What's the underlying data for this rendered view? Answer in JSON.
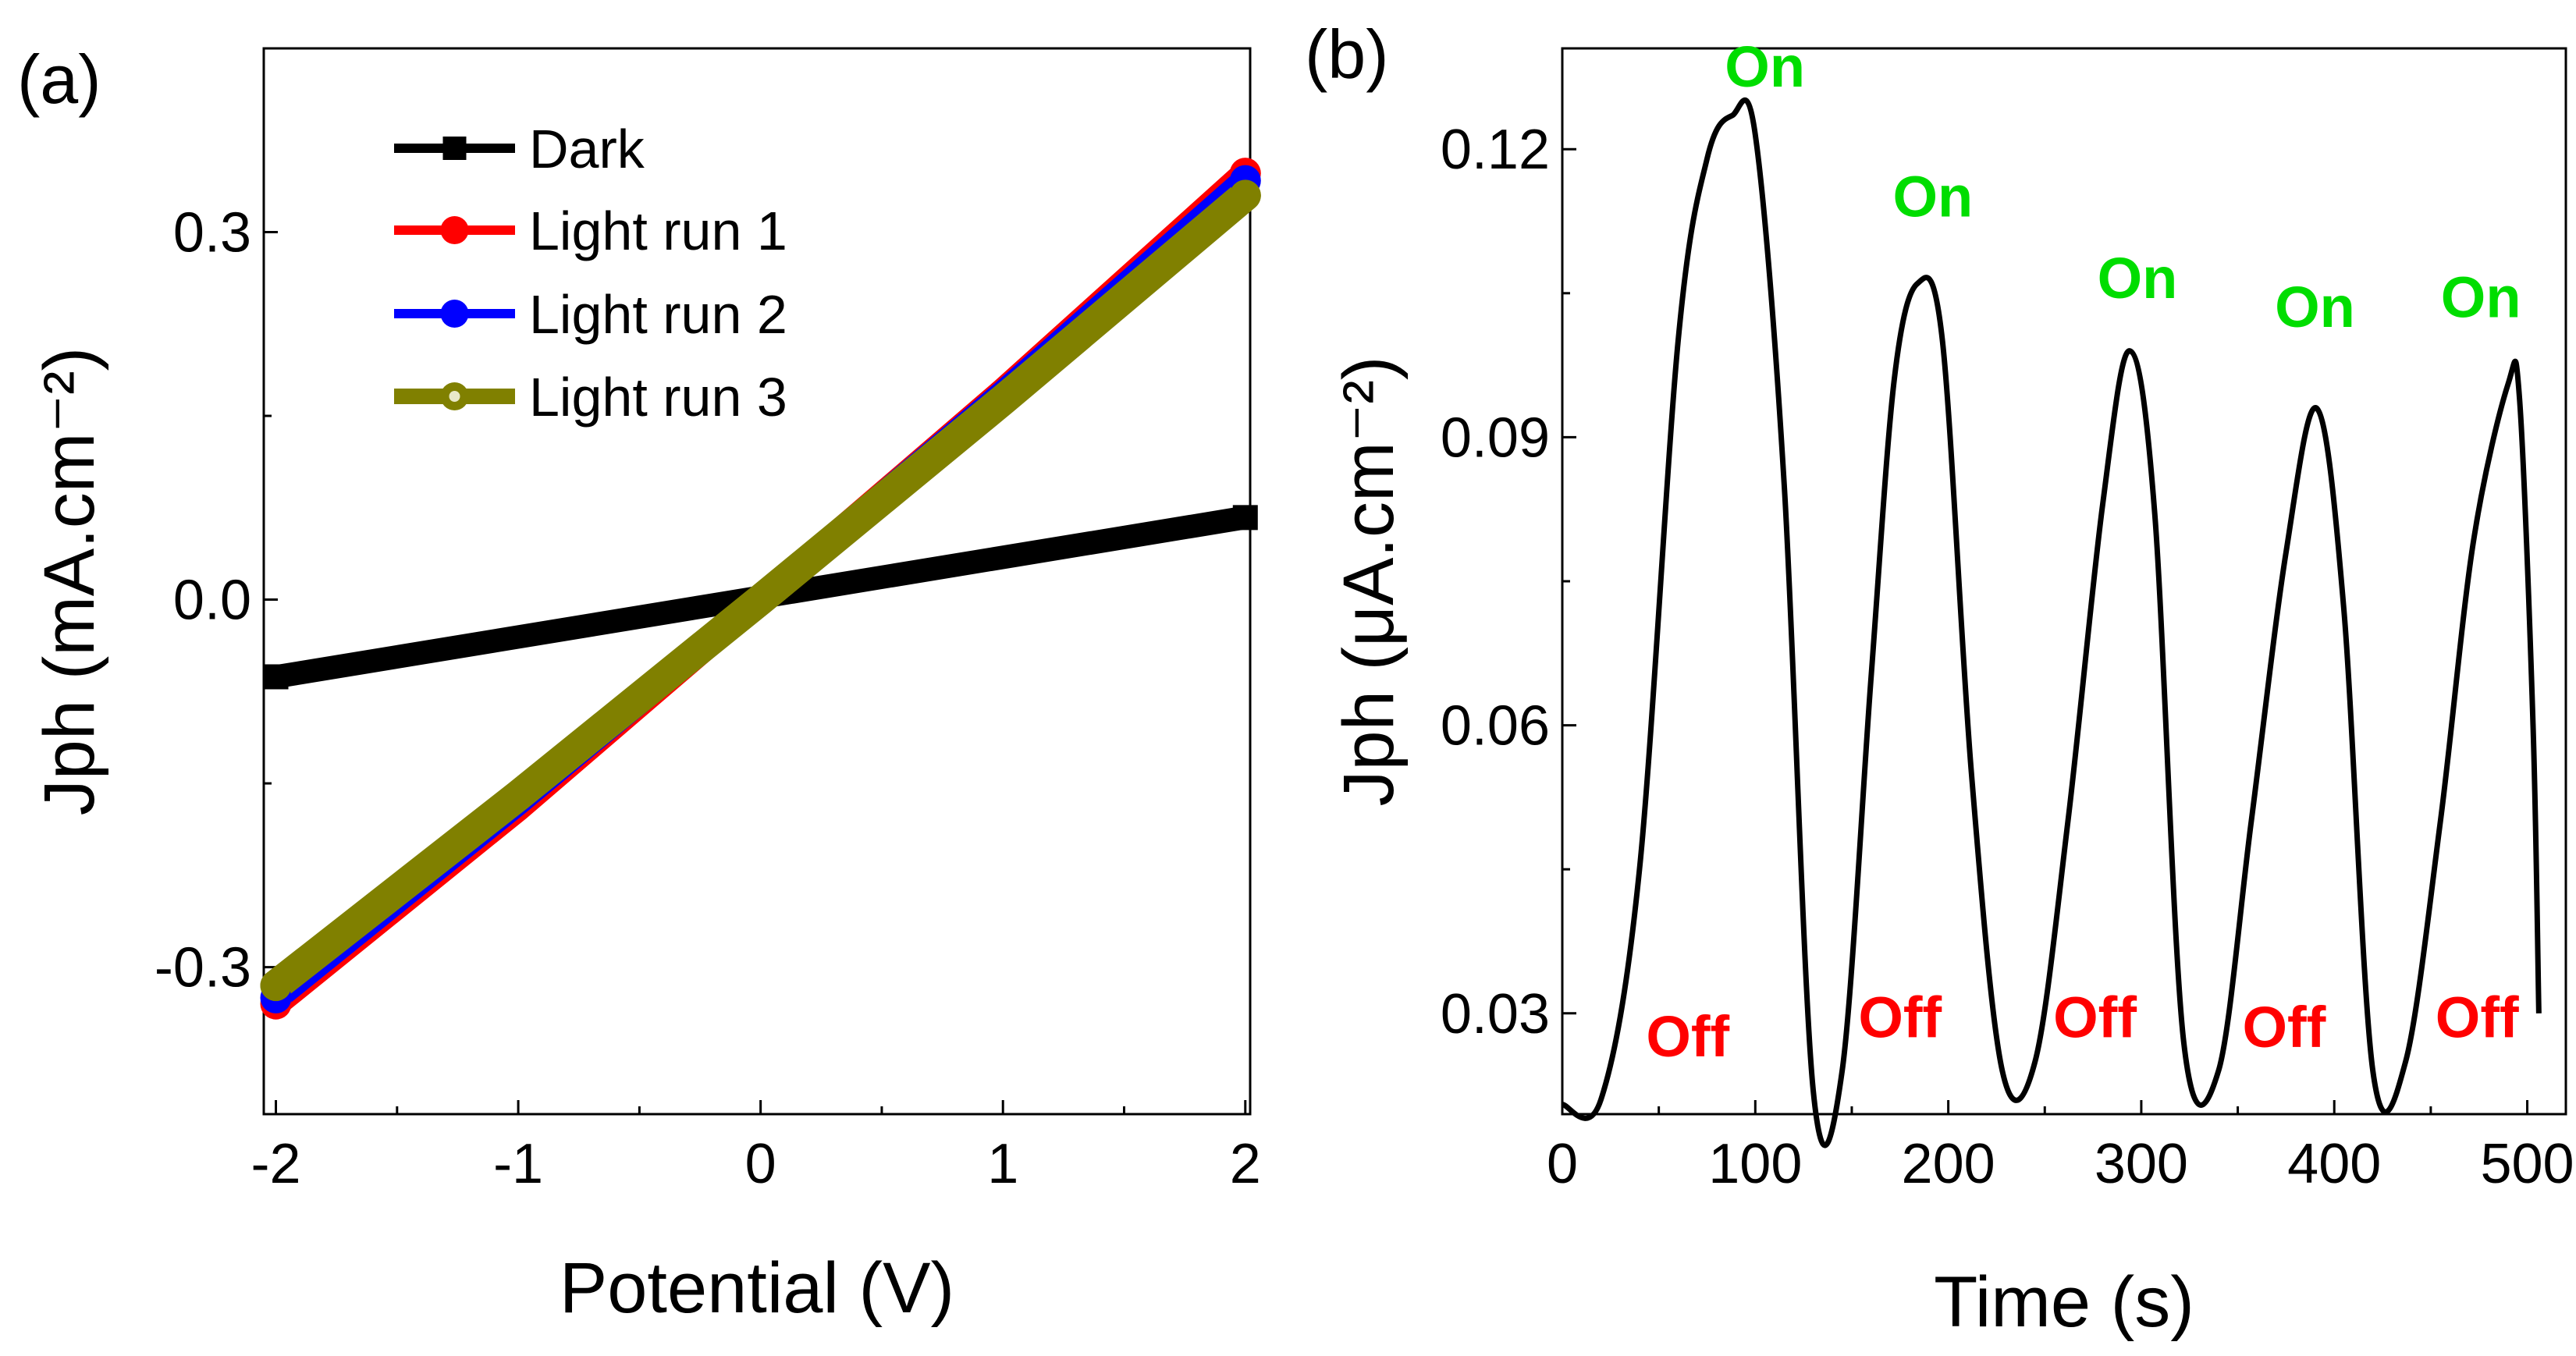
{
  "chart_data": [
    {
      "panel": "(a)",
      "type": "line",
      "title": "",
      "xlabel": "Potential (V)",
      "ylabel": "Jph (mA.cm⁻²)",
      "xlim": [
        -2.05,
        2.02
      ],
      "ylim": [
        -0.42,
        0.45
      ],
      "xticks": [
        -2,
        -1,
        0,
        1,
        2
      ],
      "xtick_labels": [
        "-2",
        "-1",
        "0",
        "1",
        "2"
      ],
      "yticks": [
        -0.3,
        0.0,
        0.3
      ],
      "ytick_labels": [
        "-0.3",
        "0.0",
        "0.3"
      ],
      "legend_position": "top-left",
      "series": [
        {
          "name": "Dark",
          "color": "#000000",
          "marker": "square",
          "x": [
            -2,
            2
          ],
          "y": [
            -0.063,
            0.067
          ]
        },
        {
          "name": "Light run 1",
          "color": "#ff0000",
          "marker": "circle",
          "x": [
            -2,
            -1,
            0,
            1,
            2
          ],
          "y": [
            -0.33,
            -0.17,
            0.0,
            0.17,
            0.348
          ]
        },
        {
          "name": "Light run 2",
          "color": "#0000ff",
          "marker": "circle",
          "x": [
            -2,
            -1,
            0,
            1,
            2
          ],
          "y": [
            -0.325,
            -0.165,
            0.0,
            0.168,
            0.342
          ]
        },
        {
          "name": "Light run 3",
          "color": "#808000",
          "marker": "circle",
          "x": [
            -2,
            -1,
            0,
            1,
            2
          ],
          "y": [
            -0.315,
            -0.16,
            0.0,
            0.163,
            0.33
          ]
        }
      ]
    },
    {
      "panel": "(b)",
      "type": "line",
      "title": "",
      "xlabel": "Time (s)",
      "ylabel": "Jph (μA.cm⁻²)",
      "xlim": [
        0,
        520
      ],
      "ylim": [
        0.0195,
        0.1305
      ],
      "xticks": [
        0,
        100,
        200,
        300,
        400,
        500
      ],
      "xtick_labels": [
        "0",
        "100",
        "200",
        "300",
        "400",
        "500"
      ],
      "yticks": [
        0.03,
        0.06,
        0.09,
        0.12
      ],
      "ytick_labels": [
        "0.03",
        "0.06",
        "0.09",
        "0.12"
      ],
      "series": [
        {
          "name": "Jph",
          "color": "#000000",
          "x": [
            0,
            20,
            40,
            60,
            75,
            88,
            100,
            115,
            130,
            145,
            160,
            172,
            184,
            197,
            212,
            228,
            245,
            262,
            280,
            294,
            307,
            322,
            340,
            357,
            375,
            391,
            405,
            420,
            437,
            455,
            472,
            490,
            496,
            503,
            506
          ],
          "y": [
            0.0205,
            0.021,
            0.045,
            0.1,
            0.119,
            0.1235,
            0.1215,
            0.085,
            0.022,
            0.024,
            0.065,
            0.096,
            0.106,
            0.1,
            0.055,
            0.024,
            0.025,
            0.05,
            0.083,
            0.099,
            0.082,
            0.027,
            0.024,
            0.05,
            0.078,
            0.093,
            0.072,
            0.024,
            0.025,
            0.05,
            0.079,
            0.0955,
            0.094,
            0.06,
            0.03
          ]
        }
      ],
      "annotations": [
        {
          "text": "On",
          "color": "#00dd00",
          "x": 105,
          "y": 0.1265
        },
        {
          "text": "On",
          "color": "#00dd00",
          "x": 192,
          "y": 0.113
        },
        {
          "text": "On",
          "color": "#00dd00",
          "x": 298,
          "y": 0.1045
        },
        {
          "text": "On",
          "color": "#00dd00",
          "x": 390,
          "y": 0.1015
        },
        {
          "text": "On",
          "color": "#00dd00",
          "x": 476,
          "y": 0.1025
        },
        {
          "text": "Off",
          "color": "#ff0000",
          "x": 65,
          "y": 0.0255
        },
        {
          "text": "Off",
          "color": "#ff0000",
          "x": 175,
          "y": 0.0275
        },
        {
          "text": "Off",
          "color": "#ff0000",
          "x": 276,
          "y": 0.0275
        },
        {
          "text": "Off",
          "color": "#ff0000",
          "x": 374,
          "y": 0.0265
        },
        {
          "text": "Off",
          "color": "#ff0000",
          "x": 474,
          "y": 0.0275
        }
      ]
    }
  ]
}
